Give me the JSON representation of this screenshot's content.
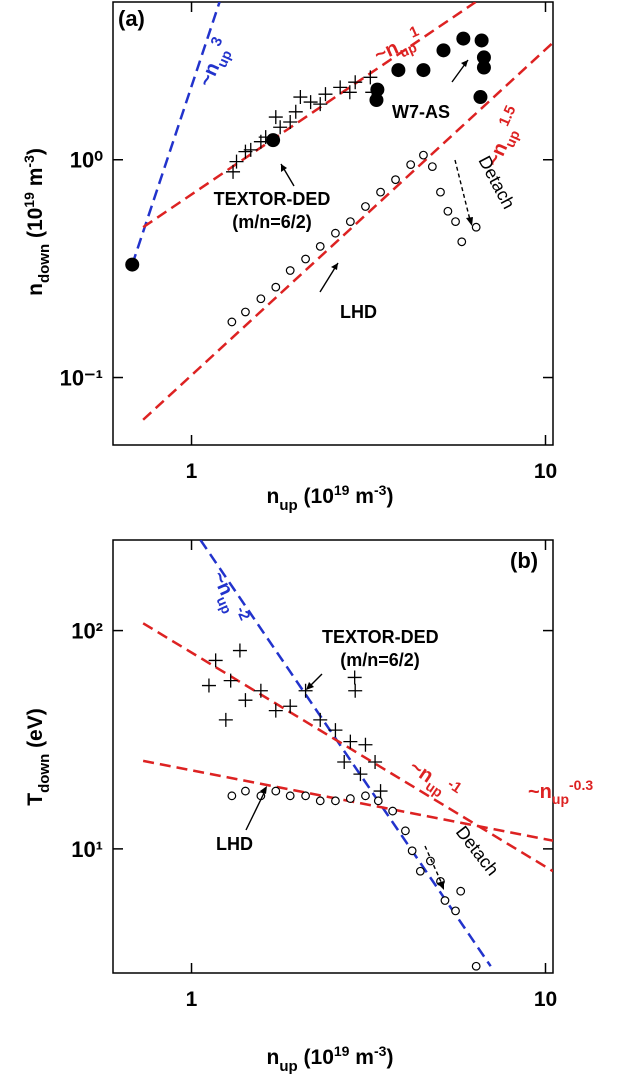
{
  "chart_data": [
    {
      "type": "scatter",
      "panel_label": "(a)",
      "xlabel": [
        "n",
        "up",
        " (10",
        "19",
        " m",
        "-3",
        ")"
      ],
      "ylabel": [
        "n",
        "down",
        " (10",
        "19",
        " m",
        "-3",
        ")"
      ],
      "xscale": "log",
      "yscale": "log",
      "xlim": [
        0.6,
        10.5
      ],
      "ylim": [
        0.049,
        5.3
      ],
      "xticks": [
        1,
        10
      ],
      "yticks": [
        {
          "value": 0.1,
          "label": "10⁻¹"
        },
        {
          "value": 1,
          "label": "10⁰"
        }
      ],
      "series": [
        {
          "name": "TEXTOR-DED",
          "marker": "cross",
          "color": "#000000",
          "x": [
            1.34,
            1.47,
            1.62,
            1.78,
            1.97,
            2.17,
            2.39,
            2.63,
            2.9,
            3.2,
            1.42,
            1.57,
            2.03,
            2.31,
            2.8,
            3.24,
            1.31,
            1.73,
            1.9
          ],
          "values": [
            0.98,
            1.11,
            1.27,
            1.41,
            1.66,
            1.84,
            2.0,
            2.15,
            2.27,
            2.39,
            1.09,
            1.21,
            1.94,
            1.8,
            2.04,
            2.04,
            0.88,
            1.57,
            1.49
          ]
        },
        {
          "name": "W7-AS",
          "marker": "filled-circle",
          "color": "#000000",
          "x": [
            0.68,
            1.7,
            3.33,
            3.35,
            3.84,
            4.52,
            5.15,
            5.86,
            6.6,
            6.7,
            6.7,
            6.55
          ],
          "values": [
            0.33,
            1.23,
            1.88,
            2.1,
            2.58,
            2.58,
            3.18,
            3.6,
            3.53,
            2.95,
            2.65,
            1.94
          ]
        },
        {
          "name": "LHD",
          "marker": "open-circle",
          "color": "#000000",
          "x": [
            1.3,
            1.42,
            1.57,
            1.73,
            1.9,
            2.1,
            2.31,
            2.55,
            2.81,
            3.1,
            3.42,
            3.77,
            4.16,
            4.52,
            4.79,
            5.05,
            5.3,
            5.57,
            5.8,
            6.37
          ],
          "values": [
            0.18,
            0.2,
            0.23,
            0.26,
            0.31,
            0.35,
            0.4,
            0.46,
            0.52,
            0.61,
            0.71,
            0.81,
            0.95,
            1.05,
            0.93,
            0.71,
            0.58,
            0.52,
            0.42,
            0.49
          ]
        }
      ],
      "fit_lines": [
        {
          "label": [
            "~n",
            "up",
            "3"
          ],
          "color": "#2233cc",
          "x": [
            0.68,
            1.2
          ],
          "values": [
            0.33,
            5.3
          ]
        },
        {
          "label": [
            "~n",
            "up",
            "1"
          ],
          "color": "#dd2222",
          "x": [
            0.73,
            6.35
          ],
          "values": [
            0.49,
            5.3
          ]
        },
        {
          "label": [
            "~n",
            "up",
            "1.5"
          ],
          "color": "#dd2222",
          "x": [
            0.73,
            10.5
          ],
          "values": [
            0.064,
            3.45
          ]
        }
      ],
      "annotations": [
        "(m/n=6/2)",
        "Detach"
      ]
    },
    {
      "type": "scatter",
      "panel_label": "(b)",
      "xlabel": [
        "n",
        "up",
        " (10",
        "19",
        " m",
        "-3",
        ")"
      ],
      "ylabel": [
        "T",
        "down",
        " (eV)"
      ],
      "xscale": "log",
      "yscale": "log",
      "xlim": [
        0.6,
        10.5
      ],
      "ylim": [
        2.7,
        260
      ],
      "xticks": [
        1,
        10
      ],
      "yticks": [
        {
          "value": 10,
          "label": "10¹"
        },
        {
          "value": 100,
          "label": "10²"
        }
      ],
      "series": [
        {
          "name": "TEXTOR-DED",
          "marker": "cross",
          "color": "#000000",
          "x": [
            1.12,
            1.17,
            1.29,
            1.42,
            1.57,
            1.73,
            1.9,
            2.1,
            2.31,
            2.55,
            2.81,
            2.9,
            3.1,
            3.3,
            3.42,
            3.0,
            2.7,
            1.25,
            1.37,
            2.89
          ],
          "values": [
            56,
            73,
            59,
            48,
            53,
            43,
            45,
            53,
            39,
            35,
            31,
            53,
            30,
            25,
            18.4,
            22,
            25,
            39,
            81,
            61
          ]
        },
        {
          "name": "LHD",
          "marker": "open-circle",
          "color": "#000000",
          "x": [
            1.3,
            1.42,
            1.57,
            1.73,
            1.9,
            2.1,
            2.31,
            2.55,
            2.81,
            3.1,
            3.37,
            3.7,
            4.02,
            4.2,
            4.43,
            4.73,
            5.05,
            5.2,
            5.57,
            5.76,
            6.37
          ],
          "values": [
            17.5,
            18.4,
            17.5,
            18.4,
            17.5,
            17.5,
            16.6,
            16.6,
            17,
            17.5,
            16.6,
            14.9,
            12.1,
            9.8,
            7.9,
            8.8,
            7.1,
            5.8,
            5.2,
            6.4,
            2.9
          ]
        }
      ],
      "fit_lines": [
        {
          "label": [
            "~n",
            "up",
            "-2"
          ],
          "color": "#2233cc",
          "x": [
            1.06,
            7.0
          ],
          "values": [
            260,
            2.9
          ]
        },
        {
          "label": [
            "~n",
            "up",
            "-1"
          ],
          "color": "#dd2222",
          "x": [
            0.73,
            10.5
          ],
          "values": [
            108,
            7.9
          ]
        },
        {
          "label": [
            "~n",
            "up",
            "-0.3"
          ],
          "color": "#dd2222",
          "x": [
            0.73,
            10.5
          ],
          "values": [
            25.3,
            10.9
          ]
        }
      ],
      "annotations": [
        "(m/n=6/2)",
        "Detach"
      ]
    }
  ]
}
